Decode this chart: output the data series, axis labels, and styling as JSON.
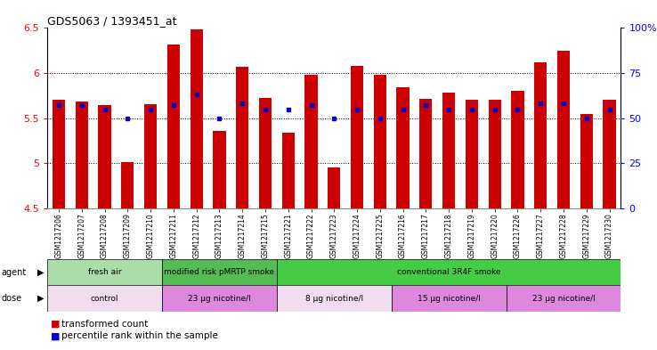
{
  "title": "GDS5063 / 1393451_at",
  "samples": [
    "GSM1217206",
    "GSM1217207",
    "GSM1217208",
    "GSM1217209",
    "GSM1217210",
    "GSM1217211",
    "GSM1217212",
    "GSM1217213",
    "GSM1217214",
    "GSM1217215",
    "GSM1217221",
    "GSM1217222",
    "GSM1217223",
    "GSM1217224",
    "GSM1217225",
    "GSM1217216",
    "GSM1217217",
    "GSM1217218",
    "GSM1217219",
    "GSM1217220",
    "GSM1217226",
    "GSM1217227",
    "GSM1217228",
    "GSM1217229",
    "GSM1217230"
  ],
  "bar_values": [
    5.7,
    5.68,
    5.64,
    5.01,
    5.65,
    6.32,
    6.48,
    5.36,
    6.07,
    5.72,
    5.34,
    5.98,
    4.95,
    6.08,
    5.98,
    5.84,
    5.71,
    5.78,
    5.7,
    5.7,
    5.8,
    6.12,
    6.25,
    5.55,
    5.7
  ],
  "percentile_values": [
    57,
    57,
    55,
    50,
    55,
    57,
    63,
    50,
    58,
    55,
    55,
    57,
    50,
    55,
    50,
    55,
    57,
    55,
    55,
    55,
    55,
    58,
    58,
    50,
    55
  ],
  "ymin": 4.5,
  "ymax": 6.5,
  "yticks": [
    4.5,
    5.0,
    5.5,
    6.0,
    6.5
  ],
  "bar_color": "#cc0000",
  "dot_color": "#0000cc",
  "agent_segments": [
    {
      "label": "fresh air",
      "start": 0,
      "end": 5,
      "color": "#aaddaa"
    },
    {
      "label": "modified risk pMRTP smoke",
      "start": 5,
      "end": 10,
      "color": "#55bb55"
    },
    {
      "label": "conventional 3R4F smoke",
      "start": 10,
      "end": 25,
      "color": "#44cc44"
    }
  ],
  "dose_segments": [
    {
      "label": "control",
      "start": 0,
      "end": 5,
      "color": "#f0ddf0"
    },
    {
      "label": "23 µg nicotine/l",
      "start": 5,
      "end": 10,
      "color": "#dd88dd"
    },
    {
      "label": "8 µg nicotine/l",
      "start": 10,
      "end": 15,
      "color": "#f0ddf0"
    },
    {
      "label": "15 µg nicotine/l",
      "start": 15,
      "end": 20,
      "color": "#dd88dd"
    },
    {
      "label": "23 µg nicotine/l",
      "start": 20,
      "end": 25,
      "color": "#dd88dd"
    }
  ],
  "right_yticks": [
    0,
    25,
    50,
    75,
    100
  ],
  "right_ylabels": [
    "0",
    "25",
    "50",
    "75",
    "100%"
  ],
  "grid_lines": [
    5.0,
    5.5,
    6.0
  ]
}
